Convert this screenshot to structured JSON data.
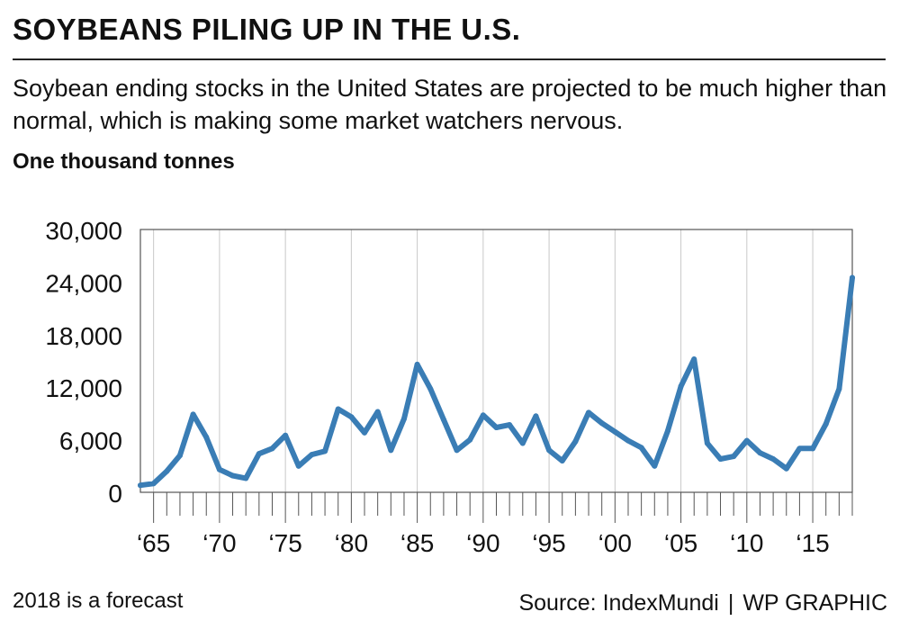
{
  "header": {
    "title": "SOYBEANS PILING UP IN THE U.S.",
    "subtitle": "Soybean ending stocks in the United States are projected to be much higher than normal, which is making some market watchers nervous.",
    "unit": "One thousand tonnes"
  },
  "footer": {
    "note": "2018 is a forecast",
    "source": "Source: IndexMundi",
    "separator": "|",
    "credit": "WP GRAPHIC"
  },
  "colors": {
    "line": "#3a7db5",
    "axis": "#555555",
    "grid": "#c8c8c8",
    "text": "#111111"
  },
  "chart_data": {
    "type": "line",
    "title": "SOYBEANS PILING UP IN THE U.S.",
    "xlabel": "",
    "ylabel": "One thousand tonnes",
    "xlim": [
      1964,
      2018
    ],
    "ylim": [
      0,
      30000
    ],
    "yticks": [
      0,
      6000,
      12000,
      18000,
      24000,
      30000
    ],
    "ytick_labels": [
      "0",
      "6,000",
      "12,000",
      "18,000",
      "24,000",
      "30,000"
    ],
    "xticks_major": [
      1965,
      1970,
      1975,
      1980,
      1985,
      1990,
      1995,
      2000,
      2005,
      2010,
      2015
    ],
    "xtick_labels": [
      "‘65",
      "‘70",
      "‘75",
      "‘80",
      "‘85",
      "‘90",
      "‘95",
      "‘00",
      "‘05",
      "‘10",
      "‘15"
    ],
    "grid": "vertical major",
    "series": [
      {
        "name": "Soybean ending stocks",
        "x": [
          1964,
          1965,
          1966,
          1967,
          1968,
          1969,
          1970,
          1971,
          1972,
          1973,
          1974,
          1975,
          1976,
          1977,
          1978,
          1979,
          1980,
          1981,
          1982,
          1983,
          1984,
          1985,
          1986,
          1987,
          1988,
          1989,
          1990,
          1991,
          1992,
          1993,
          1994,
          1995,
          1996,
          1997,
          1998,
          1999,
          2000,
          2001,
          2002,
          2003,
          2004,
          2005,
          2006,
          2007,
          2008,
          2009,
          2010,
          2011,
          2012,
          2013,
          2014,
          2015,
          2016,
          2017,
          2018
        ],
        "y": [
          800,
          1000,
          2400,
          4200,
          8900,
          6300,
          2600,
          1900,
          1600,
          4400,
          5000,
          6500,
          3000,
          4300,
          4700,
          9500,
          8600,
          6800,
          9200,
          4800,
          8400,
          14600,
          11800,
          8300,
          4800,
          6000,
          8800,
          7400,
          7700,
          5600,
          8700,
          4800,
          3600,
          5800,
          9100,
          7900,
          6900,
          5900,
          5100,
          3000,
          7000,
          12100,
          15200,
          5600,
          3800,
          4100,
          5900,
          4500,
          3800,
          2700,
          5000,
          5000,
          7800,
          11800,
          24500
        ]
      }
    ],
    "annotation": "2018 is a forecast"
  }
}
